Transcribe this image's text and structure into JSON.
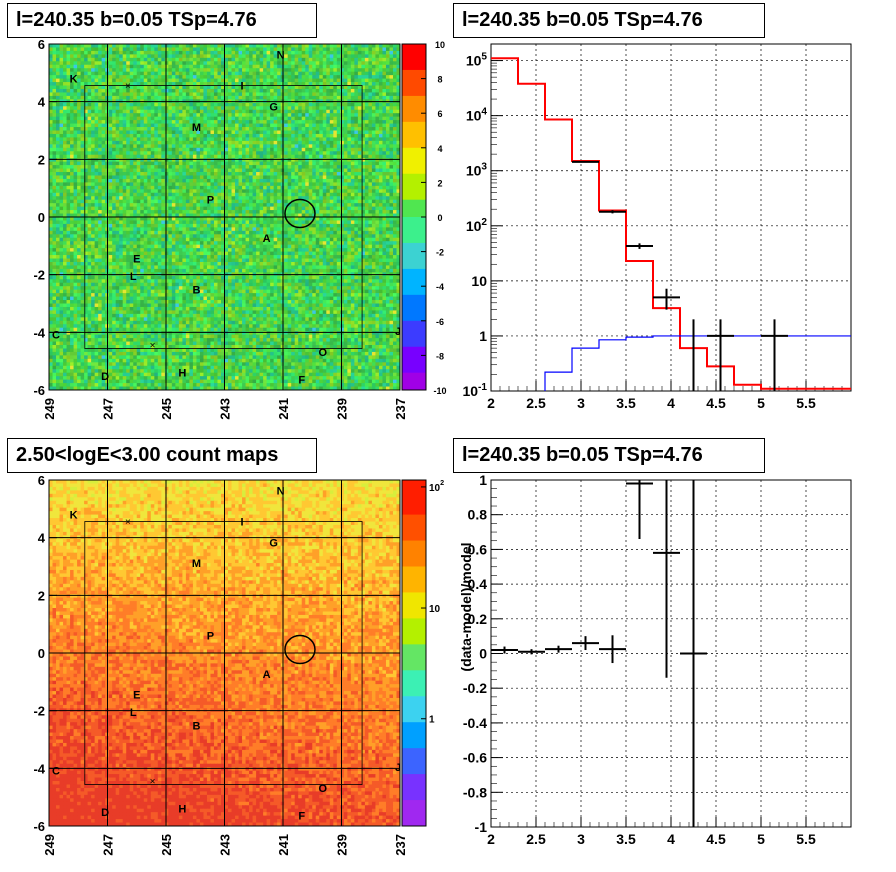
{
  "panels": {
    "tl_title": "l=240.35 b=0.05 TSp=4.76",
    "tr_title": "l=240.35 b=0.05 TSp=4.76",
    "bl_title": "2.50<logE<3.00 count maps",
    "br_title": "l=240.35 b=0.05 TSp=4.76"
  },
  "source_labels": [
    "K",
    "I",
    "N",
    "G",
    "M",
    "P",
    "A",
    "E",
    "L",
    "B",
    "C",
    "J",
    "O",
    "D",
    "H",
    "F"
  ],
  "chart_data": [
    {
      "id": "residual-map",
      "type": "heatmap",
      "title": "l=240.35 b=0.05 TSp=4.76",
      "x_ticks": [
        "249",
        "247",
        "245",
        "243",
        "241",
        "239",
        "237"
      ],
      "y_ticks": [
        "6",
        "4",
        "2",
        "0",
        "-2",
        "-4",
        "-6"
      ],
      "xlim": [
        249,
        237
      ],
      "ylim": [
        -6,
        6
      ],
      "colorbar_ticks": [
        "10",
        "8",
        "6",
        "4",
        "2",
        "0",
        "-2",
        "-4",
        "-6",
        "-8",
        "-10"
      ],
      "zlim": [
        -10,
        10
      ],
      "grid": true
    },
    {
      "id": "spectrum",
      "type": "line",
      "title": "l=240.35 b=0.05 TSp=4.76",
      "log_y": true,
      "xlim": [
        2,
        6
      ],
      "ylim": [
        0.1,
        200000
      ],
      "x_ticks": [
        "2",
        "2.5",
        "3",
        "3.5",
        "4",
        "4.5",
        "5",
        "5.5"
      ],
      "y_ticks": [
        "10^5",
        "10^4",
        "10^3",
        "10^2",
        "10",
        "1",
        "10^-1"
      ],
      "grid": true,
      "series": [
        {
          "role": "total-model",
          "color": "#ff0000",
          "bin_edges": [
            2.0,
            2.3,
            2.6,
            2.9,
            3.2,
            3.5,
            3.8,
            4.1,
            4.4,
            4.7,
            5.0,
            5.3,
            5.6,
            6.0
          ],
          "values": [
            110000,
            38000,
            8500,
            1500,
            190,
            23,
            3.2,
            0.6,
            0.28,
            0.13,
            0.11,
            0.11,
            0.11
          ]
        },
        {
          "role": "source-model",
          "color": "#0000ff",
          "bin_edges": [
            2.6,
            2.9,
            3.2,
            3.5,
            3.8,
            4.1,
            4.4,
            4.7,
            5.0,
            5.3,
            5.6,
            6.0
          ],
          "values": [
            0.22,
            0.6,
            0.85,
            0.95,
            1.0,
            1.0,
            1.0,
            1.0,
            1.0,
            1.0,
            1.0
          ]
        },
        {
          "role": "data",
          "color": "#000000",
          "x": [
            3.05,
            3.35,
            3.65,
            3.95,
            4.25,
            4.55,
            5.15
          ],
          "xerr": [
            0.15,
            0.15,
            0.15,
            0.15,
            0.0,
            0.15,
            0.15
          ],
          "y": [
            1450,
            180,
            43,
            5,
            1.0,
            1.0,
            1.0
          ],
          "yerr_lo": [
            40,
            12,
            5,
            2,
            0.9,
            0.9,
            0.9
          ],
          "yerr_hi": [
            40,
            12,
            5,
            2.2,
            1.0,
            1.0,
            1.0
          ]
        }
      ]
    },
    {
      "id": "count-map",
      "type": "heatmap",
      "title": "2.50<logE<3.00 count maps",
      "x_ticks": [
        "249",
        "247",
        "245",
        "243",
        "241",
        "239",
        "237"
      ],
      "y_ticks": [
        "6",
        "4",
        "2",
        "0",
        "-2",
        "-4",
        "-6"
      ],
      "xlim": [
        249,
        237
      ],
      "ylim": [
        -6,
        6
      ],
      "colorbar_ticks": [
        "10^2",
        "10",
        "1"
      ],
      "log_z": true,
      "grid": true
    },
    {
      "id": "residual-ratio",
      "type": "scatter",
      "title": "l=240.35 b=0.05 TSp=4.76",
      "ylabel": "(data-model)/model",
      "xlim": [
        2,
        6
      ],
      "ylim": [
        -1,
        1
      ],
      "x_ticks": [
        "2",
        "2.5",
        "3",
        "3.5",
        "4",
        "4.5",
        "5",
        "5.5"
      ],
      "y_ticks": [
        "1",
        "0.8",
        "0.6",
        "0.4",
        "0.2",
        "0",
        "-0.2",
        "-0.4",
        "-0.6",
        "-0.8",
        "-1"
      ],
      "grid": true,
      "x": [
        2.15,
        2.45,
        2.75,
        3.05,
        3.35,
        3.65,
        3.95,
        4.25
      ],
      "xerr": [
        0.15,
        0.15,
        0.15,
        0.15,
        0.15,
        0.15,
        0.15,
        0.15
      ],
      "y": [
        0.02,
        0.01,
        0.025,
        0.06,
        0.025,
        0.98,
        0.58,
        0.0
      ],
      "yerr": [
        0.02,
        0.015,
        0.02,
        0.04,
        0.08,
        0.32,
        0.72,
        1.5
      ]
    }
  ]
}
